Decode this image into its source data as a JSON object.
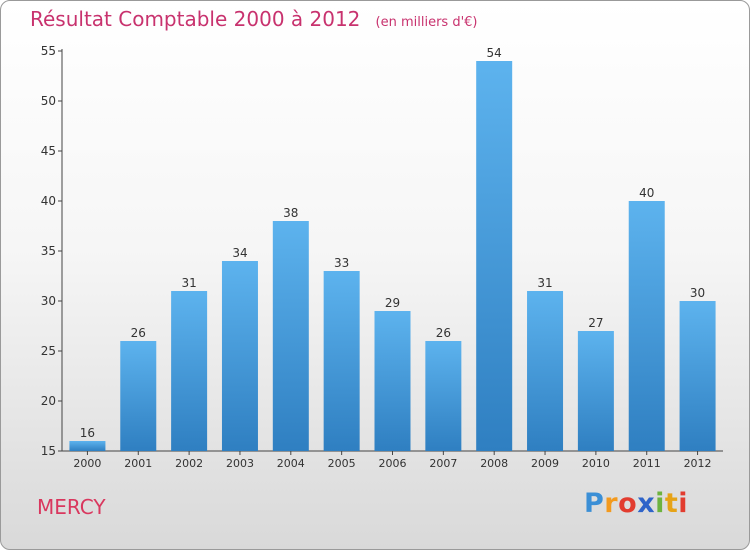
{
  "chart_data": {
    "type": "bar",
    "title": "Résultat Comptable 2000 à 2012",
    "subtitle": "(en milliers d'€)",
    "categories": [
      "2000",
      "2001",
      "2002",
      "2003",
      "2004",
      "2005",
      "2006",
      "2007",
      "2008",
      "2009",
      "2010",
      "2011",
      "2012"
    ],
    "values": [
      16,
      26,
      31,
      34,
      38,
      33,
      29,
      26,
      54,
      31,
      27,
      40,
      30
    ],
    "ylim": [
      15,
      55
    ],
    "yticks": [
      15,
      20,
      25,
      30,
      35,
      40,
      45,
      50,
      55
    ],
    "xlabel": "",
    "ylabel": "",
    "grid": false,
    "bar_color": "#4a9fe0"
  },
  "commune": "MERCY",
  "logo": {
    "letters": [
      "P",
      "r",
      "o",
      "x",
      "i",
      "t",
      "i"
    ],
    "colors": [
      "#3b8fd6",
      "#f39a1e",
      "#e23c2f",
      "#2f64c9",
      "#6db33f",
      "#e6a317",
      "#e23c2f"
    ]
  },
  "colors": {
    "title": "#c8326e",
    "commune": "#d9375e",
    "axis": "#444444"
  }
}
